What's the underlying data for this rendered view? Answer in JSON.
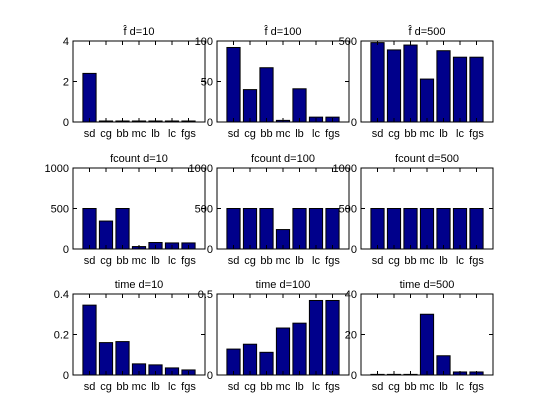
{
  "chart_data": [
    {
      "type": "bar",
      "title": "f̂ d=10",
      "ylim": [
        0,
        4
      ],
      "yticks": [
        "0",
        "2",
        "4"
      ],
      "values": [
        2.4,
        0.05,
        0.05,
        0.05,
        0.05,
        0.05,
        0.05
      ],
      "categories": [
        "sd",
        "cg",
        "bb",
        "mc",
        "lb",
        "lc",
        "fgs"
      ],
      "xticklabels": [
        "sd",
        "cg",
        "bb",
        "mc",
        "lb",
        "lc",
        "fgs"
      ]
    },
    {
      "type": "bar",
      "title": "f̂ d=100",
      "ylim": [
        0,
        100
      ],
      "yticks": [
        "0",
        "50",
        "100"
      ],
      "values": [
        92,
        40,
        67,
        2,
        41,
        6,
        6
      ],
      "categories": [
        "sd",
        "cg",
        "bb",
        "mc",
        "lb",
        "lc",
        "fgs"
      ],
      "xticklabels": [
        "sd",
        "cg",
        "bb",
        "mc",
        "lb",
        "lc",
        "fgs"
      ]
    },
    {
      "type": "bar",
      "title": "f̂ d=500",
      "ylim": [
        0,
        500
      ],
      "yticks": [
        "0",
        "500"
      ],
      "values": [
        490,
        445,
        475,
        265,
        440,
        400,
        400
      ],
      "categories": [
        "sd",
        "cg",
        "bb",
        "mc",
        "lb",
        "lc",
        "fgs"
      ],
      "xticklabels": [
        "sd",
        "cg",
        "bb",
        "mc",
        "lb",
        "lc",
        "fgs"
      ]
    },
    {
      "type": "bar",
      "title": "fcount d=10",
      "ylim": [
        0,
        1000
      ],
      "yticks": [
        "0",
        "500",
        "1000"
      ],
      "values": [
        500,
        345,
        500,
        30,
        80,
        75,
        75
      ],
      "categories": [
        "sd",
        "cg",
        "bb",
        "mc",
        "lb",
        "lc",
        "fgs"
      ],
      "xticklabels": [
        "sd",
        "cg",
        "bb",
        "mc",
        "lb",
        "lc",
        "fgs"
      ]
    },
    {
      "type": "bar",
      "title": "fcount d=100",
      "ylim": [
        0,
        1000
      ],
      "yticks": [
        "0",
        "500",
        "1000"
      ],
      "values": [
        500,
        500,
        500,
        240,
        500,
        500,
        500
      ],
      "categories": [
        "sd",
        "cg",
        "bb",
        "mc",
        "lb",
        "lc",
        "fgs"
      ],
      "xticklabels": [
        "sd",
        "cg",
        "bb",
        "mc",
        "lb",
        "lc",
        "fgs"
      ]
    },
    {
      "type": "bar",
      "title": "fcount d=500",
      "ylim": [
        0,
        1000
      ],
      "yticks": [
        "0",
        "500",
        "1000"
      ],
      "values": [
        500,
        500,
        500,
        500,
        500,
        500,
        500
      ],
      "categories": [
        "sd",
        "cg",
        "bb",
        "mc",
        "lb",
        "lc",
        "fgs"
      ],
      "xticklabels": [
        "sd",
        "cg",
        "bb",
        "mc",
        "lb",
        "lc",
        "fgs"
      ]
    },
    {
      "type": "bar",
      "title": "time d=10",
      "ylim": [
        0,
        0.4
      ],
      "yticks": [
        "0",
        "0.2",
        "0.4"
      ],
      "values": [
        0.345,
        0.16,
        0.165,
        0.055,
        0.05,
        0.035,
        0.025
      ],
      "categories": [
        "sd",
        "cg",
        "bb",
        "mc",
        "lb",
        "lc",
        "fgs"
      ],
      "xticklabels": [
        "sd",
        "cg",
        "bb",
        "mc",
        "lb",
        "lc",
        "fgs"
      ]
    },
    {
      "type": "bar",
      "title": "time d=100",
      "ylim": [
        0,
        0.5
      ],
      "yticks": [
        "0",
        "0.5"
      ],
      "values": [
        0.16,
        0.19,
        0.14,
        0.29,
        0.32,
        0.46,
        0.46
      ],
      "categories": [
        "sd",
        "cg",
        "bb",
        "mc",
        "lb",
        "lc",
        "fgs"
      ],
      "xticklabels": [
        "sd",
        "cg",
        "bb",
        "mc",
        "lb",
        "lc",
        "fgs"
      ]
    },
    {
      "type": "bar",
      "title": "time d=500",
      "ylim": [
        0,
        40
      ],
      "yticks": [
        "0",
        "20",
        "40"
      ],
      "values": [
        0.3,
        0.3,
        0.3,
        30,
        9.5,
        1.5,
        1.5
      ],
      "categories": [
        "sd",
        "cg",
        "bb",
        "mc",
        "lb",
        "lc",
        "fgs"
      ],
      "xticklabels": [
        "sd",
        "cg",
        "bb",
        "mc",
        "lb",
        "lc",
        "fgs"
      ]
    }
  ],
  "style": {
    "bar_fill": "#00008b",
    "bar_stroke": "#000000",
    "axis_color": "#000000",
    "background": "#ffffff"
  }
}
